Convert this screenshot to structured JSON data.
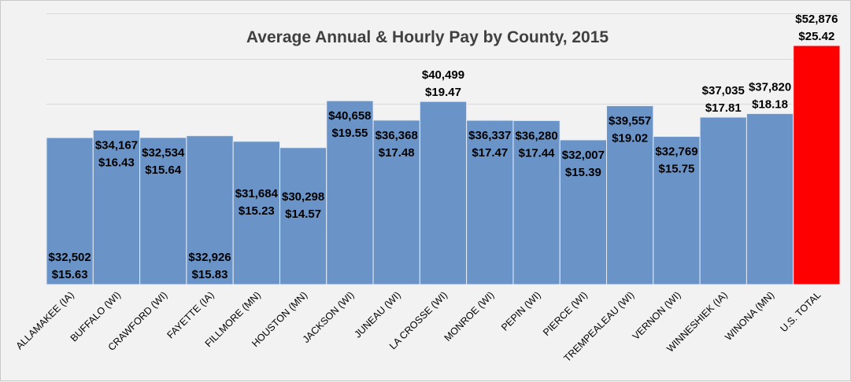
{
  "chart_data": {
    "type": "bar",
    "title": "Average Annual & Hourly Pay by County, 2015",
    "xlabel": "",
    "ylabel": "",
    "ylim": [
      0,
      60000
    ],
    "grid": true,
    "legend": "none",
    "colors": {
      "bar": "#6a94c8",
      "highlight": "#ff0000",
      "bar_edge": "#e6ecf5"
    },
    "categories": [
      "ALLAMAKEE (IA)",
      "BUFFALO (WI)",
      "CRAWFORD (WI)",
      "FAYETTE (IA)",
      "FILLMORE (MN)",
      "HOUSTON (MN)",
      "JACKSON (WI)",
      "JUNEAU (WI)",
      "LA CROSSE (WI)",
      "MONROE (WI)",
      "PEPIN (WI)",
      "PIERCE (WI)",
      "TREMPEALEAU (WI)",
      "VERNON (WI)",
      "WINNESHIEK (IA)",
      "WINONA (MN)",
      "U.S. TOTAL"
    ],
    "highlight_category": "U.S. TOTAL",
    "series": [
      {
        "values": [
          32502,
          34167,
          32534,
          32926,
          31684,
          30298,
          40658,
          36368,
          40499,
          36337,
          36280,
          32007,
          39557,
          32769,
          37035,
          37820,
          52876
        ]
      },
      {
        "values": [
          15.63,
          16.43,
          15.64,
          15.83,
          15.23,
          14.57,
          19.55,
          17.48,
          19.47,
          17.47,
          17.44,
          15.39,
          19.02,
          15.75,
          17.81,
          18.18,
          25.42
        ]
      }
    ],
    "data_labels": [
      {
        "annual": "$32,502",
        "hourly": "$15.63",
        "position": "inside-bottom"
      },
      {
        "annual": "$34,167",
        "hourly": "$16.43",
        "position": "inside-top"
      },
      {
        "annual": "$32,534",
        "hourly": "$15.64",
        "position": "inside-top"
      },
      {
        "annual": "$32,926",
        "hourly": "$15.83",
        "position": "inside-bottom"
      },
      {
        "annual": "$31,684",
        "hourly": "$15.23",
        "position": "inside-middle"
      },
      {
        "annual": "$30,298",
        "hourly": "$14.57",
        "position": "inside-middle"
      },
      {
        "annual": "$40,658",
        "hourly": "$19.55",
        "position": "inside-top"
      },
      {
        "annual": "$36,368",
        "hourly": "$17.48",
        "position": "inside-top"
      },
      {
        "annual": "$40,499",
        "hourly": "$19.47",
        "position": "outside"
      },
      {
        "annual": "$36,337",
        "hourly": "$17.47",
        "position": "inside-top"
      },
      {
        "annual": "$36,280",
        "hourly": "$17.44",
        "position": "inside-top"
      },
      {
        "annual": "$32,007",
        "hourly": "$15.39",
        "position": "inside-top"
      },
      {
        "annual": "$39,557",
        "hourly": "$19.02",
        "position": "inside-top"
      },
      {
        "annual": "$32,769",
        "hourly": "$15.75",
        "position": "inside-top"
      },
      {
        "annual": "$37,035",
        "hourly": "$17.81",
        "position": "outside"
      },
      {
        "annual": "$37,820",
        "hourly": "$18.18",
        "position": "outside"
      },
      {
        "annual": "$52,876",
        "hourly": "$25.42",
        "position": "outside"
      }
    ]
  }
}
